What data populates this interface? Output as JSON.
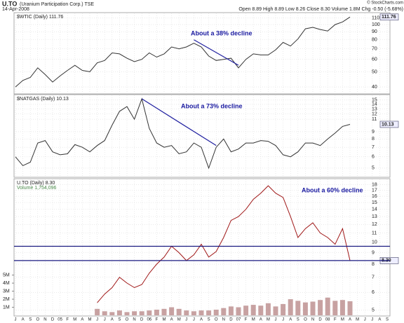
{
  "header": {
    "symbol": "U.TO",
    "name": "(Uranium Participation Corp.) TSE",
    "date": "14-Apr-2008",
    "quote": "Open 8.89 High 8.89 Low 8.26 Close 8.30 Volume 1.8M Chg -0.50 (-5.68%)",
    "brand": "© StockCharts.com"
  },
  "chart_data": [
    {
      "type": "line",
      "legend": "$WTIC (Daily) 111.76",
      "annotation": "About a 38% decline",
      "log_scale": true,
      "grid": true,
      "ylim": [
        36.5,
        118
      ],
      "yticks": [
        40,
        50,
        60,
        70,
        80,
        90,
        100,
        110
      ],
      "trendline": [
        80,
        55
      ],
      "series": [
        {
          "name": "$WTIC",
          "color": "#333333",
          "values": [
            40,
            44,
            46,
            53,
            48,
            43,
            47,
            51,
            55,
            51,
            50,
            57,
            59,
            66,
            65,
            61,
            58,
            60,
            66,
            62,
            65,
            72,
            70,
            72,
            76,
            72,
            63,
            59,
            60,
            61,
            53,
            60,
            65,
            64,
            64,
            69,
            77,
            73,
            81,
            94,
            96,
            93,
            91,
            100,
            104,
            111.76,
            null,
            null,
            null,
            null,
            null
          ]
        }
      ]
    },
    {
      "type": "line",
      "legend": "$NATGAS (Daily) 10.13",
      "annotation": "About a 73% decline",
      "log_scale": true,
      "grid": true,
      "ylim": [
        4.36,
        16.2
      ],
      "yticks": [
        5,
        6,
        7,
        8,
        9,
        11,
        12,
        13,
        14,
        15
      ],
      "trendline": [
        15.3,
        7.2
      ],
      "series": [
        {
          "name": "$NATGAS",
          "color": "#333333",
          "values": [
            6,
            5.2,
            5.5,
            7.5,
            7.8,
            6.5,
            6.2,
            6.3,
            7.3,
            7,
            6.5,
            7.2,
            7.8,
            10,
            12.5,
            13.5,
            11,
            15.3,
            9.5,
            7.5,
            7,
            7.2,
            6.3,
            6.5,
            7.5,
            7,
            5,
            7,
            8,
            6.5,
            6.8,
            7.5,
            7.5,
            7.8,
            7.7,
            7.2,
            6.2,
            6,
            6.5,
            7.5,
            7.5,
            7.2,
            8,
            8.8,
            9.8,
            10.13,
            null,
            null,
            null,
            null,
            null
          ]
        }
      ]
    },
    {
      "type": "line",
      "legend": "U.TO (Daily) 8.30",
      "volume_legend": "Volume 1,754,096",
      "annotation": "About a 60% decline",
      "log_scale": true,
      "grid": true,
      "close_label": "8.30",
      "ylim": [
        4.75,
        19
      ],
      "yticks": [
        5,
        6,
        7,
        8,
        9,
        10,
        11,
        12,
        13,
        14,
        15,
        16,
        17,
        18
      ],
      "hlines": [
        9.6,
        8.3
      ],
      "y2lim": [
        0,
        16900000
      ],
      "y2ticks": [
        {
          "value": 1000000,
          "label": "1M"
        },
        {
          "value": 2000000,
          "label": "2M"
        },
        {
          "value": 3000000,
          "label": "3M"
        },
        {
          "value": 4000000,
          "label": "4M"
        },
        {
          "value": 5000000,
          "label": "5M"
        }
      ],
      "categories": [
        "J",
        "A",
        "S",
        "O",
        "N",
        "D",
        "05",
        "F",
        "M",
        "A",
        "M",
        "J",
        "J",
        "A",
        "S",
        "O",
        "N",
        "D",
        "06",
        "F",
        "M",
        "A",
        "M",
        "J",
        "J",
        "A",
        "S",
        "O",
        "N",
        "D",
        "07",
        "F",
        "M",
        "A",
        "M",
        "J",
        "J",
        "A",
        "S",
        "O",
        "N",
        "D",
        "08",
        "F",
        "M",
        "A",
        "M",
        "J",
        "J",
        "A",
        "S"
      ],
      "series": [
        {
          "name": "U.TO",
          "color": "#a01818",
          "values": [
            null,
            null,
            null,
            null,
            null,
            null,
            null,
            null,
            null,
            null,
            null,
            5.4,
            5.9,
            6.3,
            7.0,
            6.6,
            6.3,
            6.5,
            7.3,
            8.0,
            8.6,
            9.6,
            9.0,
            8.3,
            8.8,
            9.8,
            8.6,
            9.1,
            10.5,
            12.5,
            13,
            14,
            15.5,
            16.5,
            17.8,
            16.5,
            15.8,
            13,
            10.5,
            11.5,
            12.2,
            11,
            10.5,
            9.8,
            11.5,
            8.3,
            null,
            null,
            null,
            null,
            null
          ]
        },
        {
          "name": "Volume",
          "color": "#b07a7a",
          "axis": "y2",
          "values": [
            null,
            null,
            null,
            null,
            null,
            null,
            null,
            null,
            null,
            null,
            null,
            800000,
            500000,
            400000,
            600000,
            400000,
            500000,
            500000,
            600000,
            700000,
            800000,
            1000000,
            800000,
            600000,
            500000,
            600000,
            600000,
            700000,
            900000,
            1100000,
            1000000,
            1200000,
            1300000,
            1200000,
            1500000,
            1100000,
            1400000,
            2000000,
            1800000,
            1600000,
            1700000,
            1900000,
            2200000,
            1800000,
            1900000,
            1750000,
            null,
            null,
            null,
            null,
            null
          ]
        }
      ]
    }
  ]
}
